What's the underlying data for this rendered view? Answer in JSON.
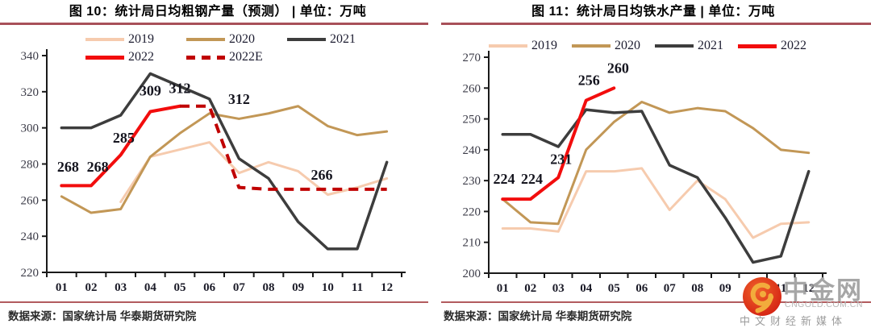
{
  "page": {
    "accent_rule_color": "#A85059",
    "bottom_rule_color": "#B25B5E"
  },
  "chart_data": [
    {
      "type": "line",
      "title": "图 10：统计局日均粗钢产量（预测） | 单位：万吨",
      "source": "数据来源：国家统计局  华泰期货研究院",
      "xlabel": "",
      "ylabel": "",
      "categories": [
        "01",
        "02",
        "03",
        "04",
        "05",
        "06",
        "07",
        "08",
        "09",
        "10",
        "11",
        "12"
      ],
      "ylim": [
        220,
        340
      ],
      "ystep": 20,
      "grid": false,
      "legend_position": "top",
      "legend_rows": [
        [
          "2019",
          "2020",
          "2021"
        ],
        [
          "2022",
          "2022E"
        ]
      ],
      "series": [
        {
          "name": "2019",
          "color": "#F6CBAE",
          "width": 3,
          "start": 3,
          "values": [
            259,
            284,
            288,
            292,
            275,
            281,
            276,
            263,
            267,
            272
          ]
        },
        {
          "name": "2020",
          "color": "#C29756",
          "width": 3,
          "start": 1,
          "values": [
            262,
            253,
            255,
            284,
            297,
            308,
            305,
            308,
            312,
            301,
            296,
            298
          ]
        },
        {
          "name": "2021",
          "color": "#3D3D3D",
          "width": 3.5,
          "start": 1,
          "values": [
            300,
            300,
            307,
            330,
            323,
            316,
            283,
            272,
            248,
            233,
            233,
            281
          ]
        },
        {
          "name": "2022",
          "color": "#F20D0D",
          "width": 4,
          "start": 1,
          "values": [
            268,
            268,
            285,
            309,
            312
          ]
        },
        {
          "name": "2022E",
          "color": "#C00000",
          "width": 4,
          "dash": "12 8",
          "start": 5,
          "values": [
            312,
            312,
            267,
            266,
            266,
            266,
            266,
            266
          ]
        }
      ],
      "annotations": [
        {
          "text": "268",
          "x": 1.22,
          "y": 278.5
        },
        {
          "text": "268",
          "x": 2.22,
          "y": 278.5
        },
        {
          "text": "285",
          "x": 3.1,
          "y": 294.5
        },
        {
          "text": "309",
          "x": 4.0,
          "y": 320.5
        },
        {
          "text": "312",
          "x": 5.0,
          "y": 322
        },
        {
          "text": "312",
          "x": 7.0,
          "y": 316
        },
        {
          "text": "266",
          "x": 9.8,
          "y": 274
        }
      ]
    },
    {
      "type": "line",
      "title": "图 11：统计局日均铁水产量 | 单位：万吨",
      "source": "数据来源：国家统计局  华泰期货研究院",
      "xlabel": "",
      "ylabel": "",
      "categories": [
        "01",
        "02",
        "03",
        "04",
        "05",
        "06",
        "07",
        "08",
        "09",
        "10",
        "11",
        "12"
      ],
      "ylim": [
        200,
        270
      ],
      "ystep": 10,
      "grid": false,
      "legend_position": "top",
      "legend_rows": [
        [
          "2019",
          "2020",
          "2021",
          "2022"
        ]
      ],
      "series": [
        {
          "name": "2019",
          "color": "#F6CBAE",
          "width": 3,
          "start": 1,
          "values": [
            214.5,
            214.5,
            213.5,
            233,
            233,
            234,
            220.5,
            230,
            224,
            211.5,
            216,
            216.5
          ]
        },
        {
          "name": "2020",
          "color": "#C29756",
          "width": 3,
          "start": 1,
          "values": [
            224,
            216.5,
            216,
            240,
            249,
            255.5,
            252,
            253.5,
            252.5,
            247,
            240,
            239
          ]
        },
        {
          "name": "2021",
          "color": "#3D3D3D",
          "width": 3.5,
          "start": 1,
          "values": [
            245,
            245,
            241,
            253,
            252,
            252.5,
            235,
            231,
            218,
            203.5,
            205.5,
            233
          ]
        },
        {
          "name": "2022",
          "color": "#F20D0D",
          "width": 4,
          "start": 1,
          "values": [
            224,
            224,
            231,
            256,
            260
          ]
        }
      ],
      "annotations": [
        {
          "text": "224",
          "x": 1.05,
          "y": 230.5
        },
        {
          "text": "224",
          "x": 2.05,
          "y": 230.5
        },
        {
          "text": "231",
          "x": 3.1,
          "y": 237
        },
        {
          "text": "256",
          "x": 4.1,
          "y": 262.5
        },
        {
          "text": "260",
          "x": 5.15,
          "y": 266.5
        }
      ]
    }
  ],
  "watermark": {
    "brand": "中金网",
    "domain": "CNGOLD.COM.CN",
    "tagline": "中文财经新媒体",
    "logo": "gold-swirl-icon",
    "logo_colors": {
      "circle_outer": "#D21E12",
      "circle_inner": "#F0622A",
      "swirl": "#F2AC3C"
    }
  }
}
